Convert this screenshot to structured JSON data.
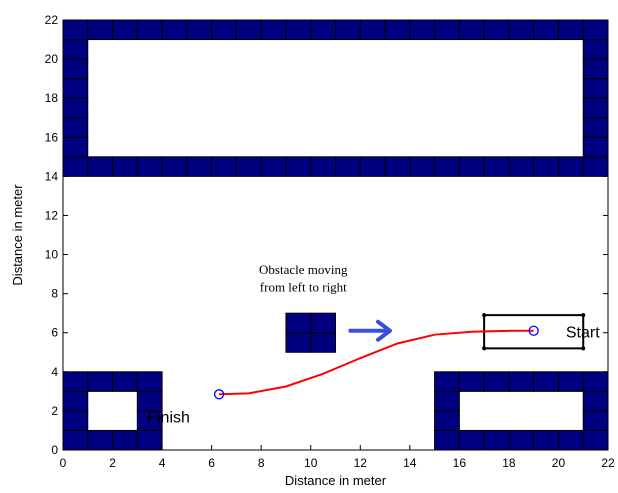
{
  "chart_data": {
    "type": "scatter",
    "title": "",
    "xlabel": "Distance in meter",
    "ylabel": "Distance in meter",
    "xlim": [
      0,
      22
    ],
    "ylim": [
      0,
      22
    ],
    "xticks": [
      "0",
      "2",
      "4",
      "6",
      "8",
      "10",
      "12",
      "14",
      "16",
      "18",
      "20",
      "22"
    ],
    "yticks": [
      "0",
      "2",
      "4",
      "6",
      "8",
      "10",
      "12",
      "14",
      "16",
      "18",
      "20",
      "22"
    ],
    "grid": false,
    "obstacle_color": "#000080",
    "path_color": "#ff0000",
    "marker_color": "#0000ff",
    "arrow_color": "#3a50d8",
    "obstacles": [
      {
        "name": "top-wall",
        "x0": 0,
        "x1": 22,
        "y0": 14,
        "y1": 22,
        "inner": [
          1,
          21,
          15,
          21
        ]
      },
      {
        "name": "bottom-left-block",
        "x0": 0,
        "x1": 4,
        "y0": 0,
        "y1": 4,
        "inner": [
          1,
          3,
          1,
          3
        ]
      },
      {
        "name": "bottom-right-block",
        "x0": 15,
        "x1": 22,
        "y0": 0,
        "y1": 4,
        "inner": [
          16,
          21,
          1,
          3
        ]
      },
      {
        "name": "moving-obstacle",
        "x0": 9,
        "x1": 11,
        "y0": 5,
        "y1": 7,
        "inner": null
      }
    ],
    "vehicle_box": {
      "x0": 17,
      "x1": 21,
      "y0": 5.2,
      "y1": 6.9
    },
    "path": {
      "x": [
        6.3,
        7.5,
        9,
        10.5,
        12,
        13.5,
        15,
        16.5,
        17.5,
        18.2,
        19
      ],
      "y": [
        2.85,
        2.9,
        3.25,
        3.9,
        4.7,
        5.45,
        5.9,
        6.05,
        6.08,
        6.1,
        6.1
      ]
    },
    "start_point": {
      "x": 19,
      "y": 6.1
    },
    "finish_point": {
      "x": 6.3,
      "y": 2.85
    },
    "arrow": {
      "x0": 11.6,
      "x1": 13.2,
      "y": 6.1
    },
    "annotations": {
      "note_line1": "Obstacle moving",
      "note_line2": "from left to right",
      "start_label": "Start",
      "finish_label": "Finish"
    }
  }
}
